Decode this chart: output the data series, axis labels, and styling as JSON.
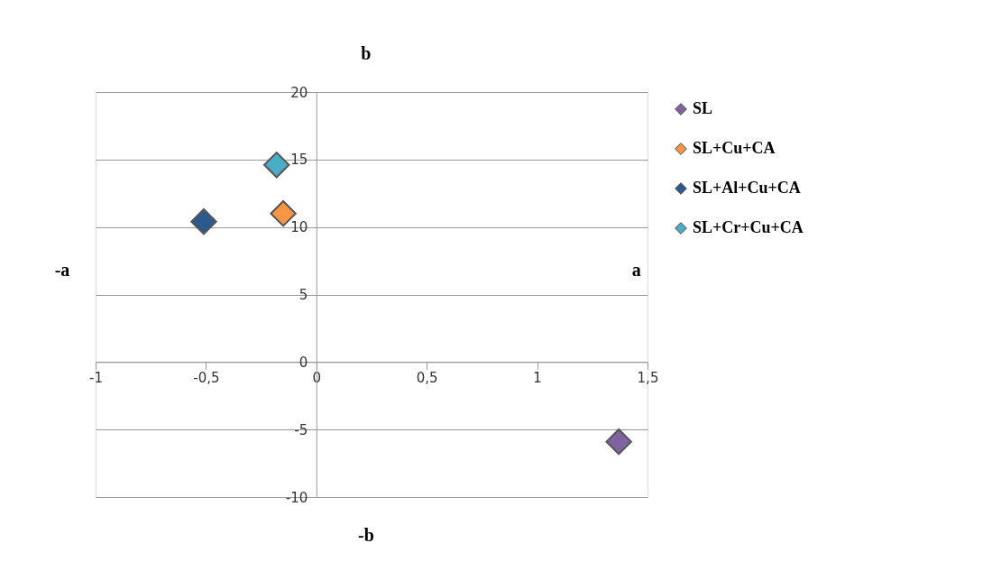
{
  "chart_data": {
    "type": "scatter",
    "marker": "diamond",
    "grid": "y",
    "legend": "right",
    "xlim": [
      -1,
      1.5
    ],
    "ylim": [
      -10,
      20
    ],
    "xticks": [
      -1,
      {
        "value": -0.5,
        "label": "-0,5"
      },
      0,
      {
        "value": 0.5,
        "label": "0,5"
      },
      1,
      {
        "value": 1.5,
        "label": "1,5"
      }
    ],
    "yticks": [
      -10,
      -5,
      0,
      5,
      10,
      15,
      20
    ],
    "annotations": [
      "b",
      "-b",
      "-a",
      "a"
    ],
    "series": [
      {
        "name": "SL",
        "color": "#8064a2",
        "x": [
          1.37
        ],
        "values": [
          -5.9
        ]
      },
      {
        "name": "SL+Cu+CA",
        "color": "#f79646",
        "x": [
          -0.15
        ],
        "values": [
          11.0
        ]
      },
      {
        "name": "SL+Al+Cu+CA",
        "color": "#2c5a8c",
        "x": [
          -0.51
        ],
        "values": [
          10.4
        ]
      },
      {
        "name": "SL+Cr+Cu+CA",
        "color": "#4bacc6",
        "x": [
          -0.18
        ],
        "values": [
          14.6
        ]
      }
    ]
  }
}
